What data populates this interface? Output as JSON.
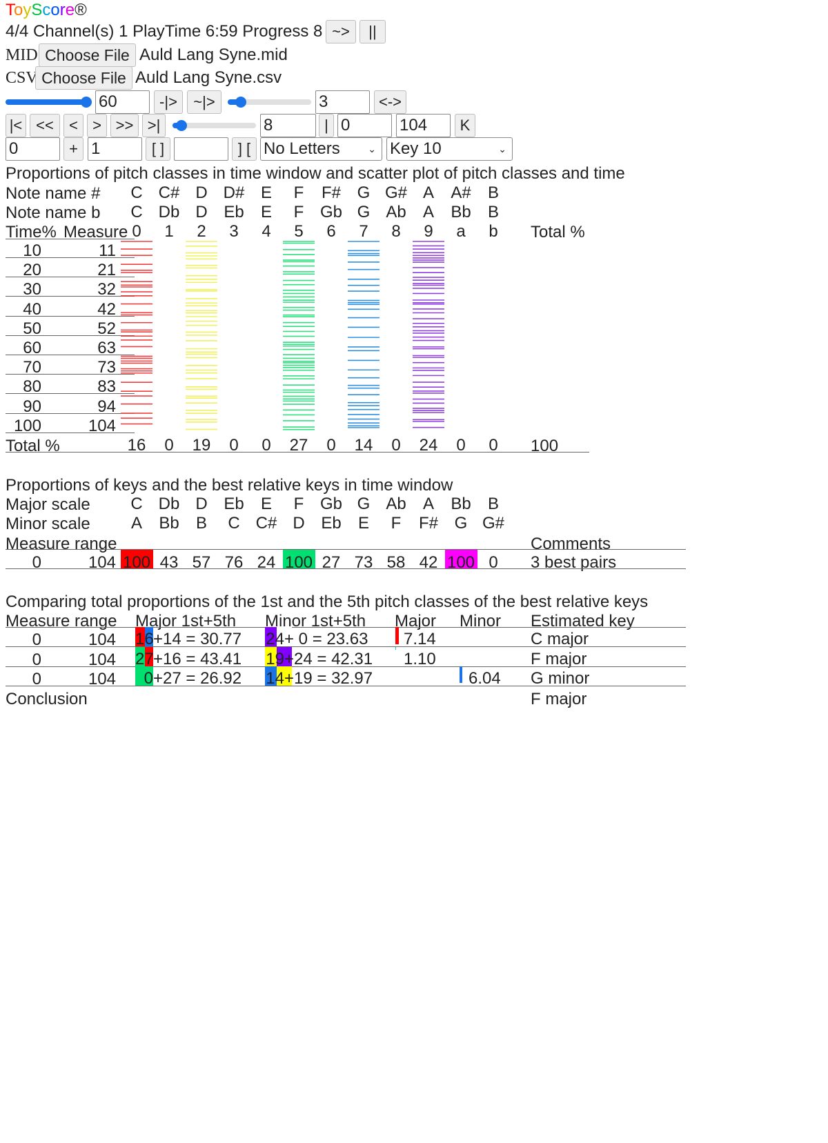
{
  "app": {
    "logo_letters": [
      "T",
      "o",
      "y",
      "S",
      "c",
      "o",
      "r",
      "e"
    ],
    "logo_colors": [
      "#ff0000",
      "#ff8000",
      "#d4c000",
      "#00c040",
      "#00a0e0",
      "#0050ff",
      "#8000ff",
      "#e000e0"
    ],
    "reg": "®"
  },
  "status": {
    "text": "4/4 Channel(s) 1 PlayTime 6:59 Progress 8",
    "play_label": "~>",
    "pause_label": "||"
  },
  "files": {
    "mid_label": "MID",
    "mid_button": "Choose File",
    "mid_file": "Auld Lang Syne.mid",
    "csv_label": "CSV",
    "csv_button": "Choose File",
    "csv_file": "Auld Lang Syne.csv"
  },
  "controls": {
    "tempo_slider_value": 1.0,
    "tempo_value": "60",
    "btn_step": "-|>",
    "btn_wave": "~|>",
    "slider2_value": 0.1,
    "value2": "3",
    "btn_swap": "<->",
    "nav": [
      "|<",
      "<<",
      "<",
      ">",
      ">>",
      ">|"
    ],
    "slider3_value": 0.05,
    "value3": "8",
    "btn_bar": "|",
    "value4": "0",
    "value5": "104",
    "btn_k": "K",
    "value6": "0",
    "btn_plus": "+",
    "value7": "1",
    "btn_brackets": "[ ]",
    "value8": "",
    "btn_rbrackets": "] [",
    "letters_select": "No Letters",
    "key_select": "Key 10"
  },
  "pitch": {
    "title": "Proportions of pitch classes in time window and scatter plot of pitch classes and time",
    "row1_label": "Note name #",
    "row1": [
      "C",
      "C#",
      "D",
      "D#",
      "E",
      "F",
      "F#",
      "G",
      "G#",
      "A",
      "A#",
      "B"
    ],
    "row2_label": "Note name b",
    "row2": [
      "C",
      "Db",
      "D",
      "Eb",
      "E",
      "F",
      "Gb",
      "G",
      "Ab",
      "A",
      "Bb",
      "B"
    ],
    "row3_label_a": "Time%",
    "row3_label_b": "Measure",
    "row3": [
      "0",
      "1",
      "2",
      "3",
      "4",
      "5",
      "6",
      "7",
      "8",
      "9",
      "a",
      "b"
    ],
    "total_header": "Total %",
    "time_rows": [
      {
        "t": "10",
        "m": "11"
      },
      {
        "t": "20",
        "m": "21"
      },
      {
        "t": "30",
        "m": "32"
      },
      {
        "t": "40",
        "m": "42"
      },
      {
        "t": "50",
        "m": "52"
      },
      {
        "t": "60",
        "m": "63"
      },
      {
        "t": "70",
        "m": "73"
      },
      {
        "t": "80",
        "m": "83"
      },
      {
        "t": "90",
        "m": "94"
      },
      {
        "t": "100",
        "m": "104"
      }
    ],
    "total_label": "Total %",
    "totals": [
      "16",
      "0",
      "19",
      "0",
      "0",
      "27",
      "0",
      "14",
      "0",
      "24",
      "0",
      "0"
    ],
    "grand_total": "100",
    "scatter_colors": {
      "0": "#f04040",
      "2": "#f0f060",
      "5": "#30e080",
      "7": "#3090e0",
      "9": "#9040e0"
    }
  },
  "keys": {
    "title": "Proportions of keys and the best relative keys in time window",
    "major_label": "Major scale",
    "major": [
      "C",
      "Db",
      "D",
      "Eb",
      "E",
      "F",
      "Gb",
      "G",
      "Ab",
      "A",
      "Bb",
      "B"
    ],
    "minor_label": "Minor scale",
    "minor": [
      "A",
      "Bb",
      "B",
      "C",
      "C#",
      "D",
      "Eb",
      "E",
      "F",
      "F#",
      "G",
      "G#"
    ],
    "range_label": "Measure range",
    "comments_label": "Comments",
    "range_from": "0",
    "range_to": "104",
    "values": [
      "100",
      "43",
      "57",
      "76",
      "24",
      "100",
      "27",
      "73",
      "58",
      "42",
      "100",
      "0"
    ],
    "highlights": {
      "0": "#ff0000",
      "5": "#00e070",
      "10": "#ff00ff"
    },
    "comment": "3 best pairs"
  },
  "compare": {
    "title": "Comparing total proportions of the 1st and the 5th pitch classes of the best relative keys",
    "h_range": "Measure range",
    "h_major": "Major 1st+5th",
    "h_minor": "Minor 1st+5th",
    "h_major2": "Major",
    "h_minor2": "Minor",
    "h_key": "Estimated key",
    "rows": [
      {
        "from": "0",
        "to": "104",
        "maj_a": "16",
        "maj_rest": "+14 = 30.77",
        "maj_colors": [
          "#ff0000",
          "#1a73e8"
        ],
        "min_a": "24",
        "min_rest": "+  0 = 23.63",
        "min_colors": [
          "#8000ff",
          "#ffffff"
        ],
        "major_diff": "7.14",
        "major_bar": 0.9,
        "minor_diff": "",
        "minor_bar": 0,
        "key": "C major"
      },
      {
        "from": "0",
        "to": "104",
        "maj_a": "27",
        "maj_rest": "+16 = 43.41",
        "maj_colors": [
          "#00e070",
          "#ff0000"
        ],
        "min_a": "19",
        "min_rest": "+24 = 42.31",
        "min_colors": [
          "#ffff00",
          "#8000ff"
        ],
        "major_diff": "1.10",
        "major_bar": 0.15,
        "minor_diff": "",
        "minor_bar": 0,
        "key": "F major"
      },
      {
        "from": "0",
        "to": "104",
        "maj_a": "0",
        "maj_rest": "+27 = 26.92",
        "maj_colors": [
          "#00e070",
          "#00e070"
        ],
        "min_a": "14",
        "min_rest": "+19 = 32.97",
        "min_colors": [
          "#1a73e8",
          "#ffff00"
        ],
        "major_diff": "",
        "major_bar": 0,
        "minor_diff": "6.04",
        "minor_bar": 0.75,
        "key": "G minor"
      }
    ],
    "conclusion_label": "Conclusion",
    "conclusion": "F major"
  }
}
